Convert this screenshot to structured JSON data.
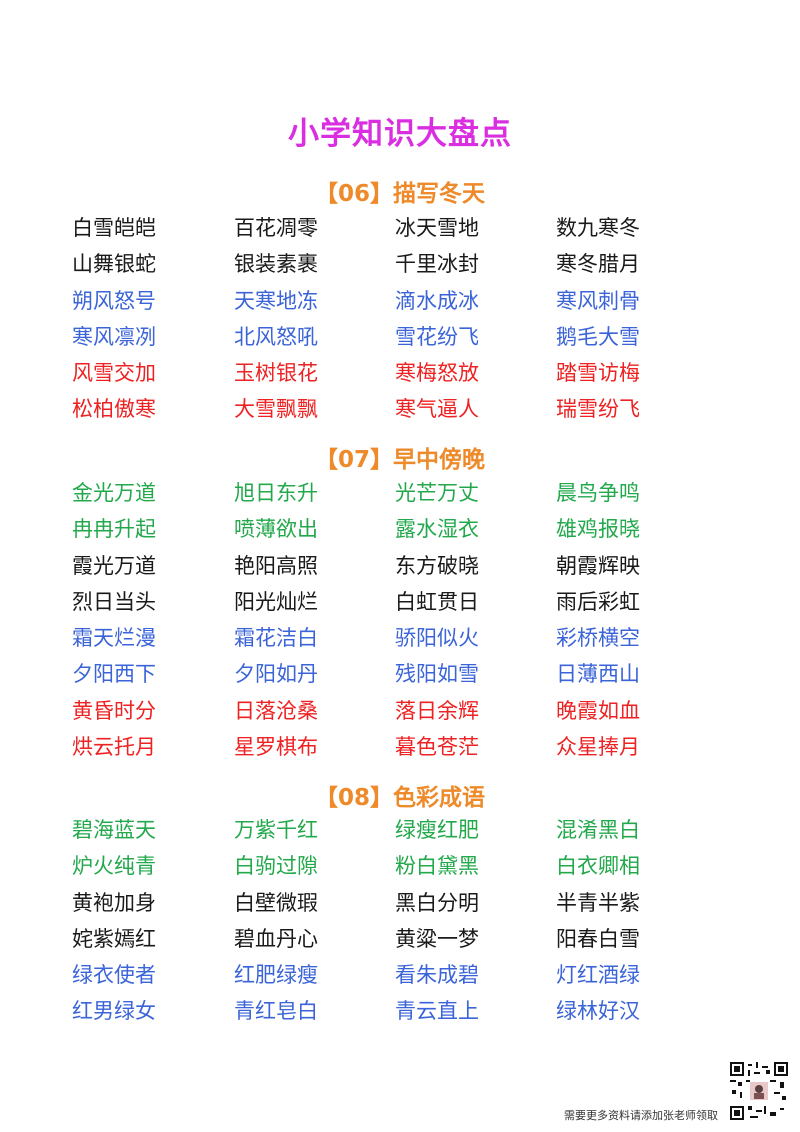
{
  "title": "小学知识大盘点",
  "colors": {
    "title": "#d92fe0",
    "section": "#ee8a2a",
    "black": "#1a1a1a",
    "blue": "#3b64d8",
    "red": "#ee2222",
    "green": "#23a84c"
  },
  "sections": [
    {
      "title": "【06】描写冬天",
      "rows": [
        {
          "color": "black",
          "items": [
            "白雪皑皑",
            "百花凋零",
            "冰天雪地",
            "数九寒冬"
          ]
        },
        {
          "color": "black",
          "items": [
            "山舞银蛇",
            "银装素裹",
            "千里冰封",
            "寒冬腊月"
          ]
        },
        {
          "color": "blue",
          "items": [
            "朔风怒号",
            "天寒地冻",
            "滴水成冰",
            "寒风刺骨"
          ]
        },
        {
          "color": "blue",
          "items": [
            "寒风凛冽",
            "北风怒吼",
            "雪花纷飞",
            "鹅毛大雪"
          ]
        },
        {
          "color": "red",
          "items": [
            "风雪交加",
            "玉树银花",
            "寒梅怒放",
            "踏雪访梅"
          ]
        },
        {
          "color": "red",
          "items": [
            "松柏傲寒",
            "大雪飘飘",
            "寒气逼人",
            "瑞雪纷飞"
          ]
        }
      ]
    },
    {
      "title": "【07】早中傍晚",
      "rows": [
        {
          "color": "green",
          "items": [
            "金光万道",
            "旭日东升",
            "光芒万丈",
            "晨鸟争鸣"
          ]
        },
        {
          "color": "green",
          "items": [
            "冉冉升起",
            "喷薄欲出",
            "露水湿衣",
            "雄鸡报晓"
          ]
        },
        {
          "color": "black",
          "items": [
            "霞光万道",
            "艳阳高照",
            "东方破晓",
            "朝霞辉映"
          ]
        },
        {
          "color": "black",
          "items": [
            "烈日当头",
            "阳光灿烂",
            "白虹贯日",
            "雨后彩虹"
          ]
        },
        {
          "color": "blue",
          "items": [
            "霜天烂漫",
            "霜花洁白",
            "骄阳似火",
            "彩桥横空"
          ]
        },
        {
          "color": "blue",
          "items": [
            "夕阳西下",
            "夕阳如丹",
            "残阳如雪",
            "日薄西山"
          ]
        },
        {
          "color": "red",
          "items": [
            "黄昏时分",
            "日落沧桑",
            "落日余辉",
            "晚霞如血"
          ]
        },
        {
          "color": "red",
          "items": [
            "烘云托月",
            "星罗棋布",
            "暮色苍茫",
            "众星捧月"
          ]
        }
      ]
    },
    {
      "title": "【08】色彩成语",
      "rows": [
        {
          "color": "green",
          "items": [
            "碧海蓝天",
            "万紫千红",
            "绿瘦红肥",
            "混淆黑白"
          ]
        },
        {
          "color": "green",
          "items": [
            "炉火纯青",
            "白驹过隙",
            "粉白黛黑",
            "白衣卿相"
          ]
        },
        {
          "color": "black",
          "items": [
            "黄袍加身",
            "白壁微瑕",
            "黑白分明",
            "半青半紫"
          ]
        },
        {
          "color": "black",
          "items": [
            "姹紫嫣红",
            "碧血丹心",
            "黄粱一梦",
            "阳春白雪"
          ]
        },
        {
          "color": "blue",
          "items": [
            "绿衣使者",
            "红肥绿瘦",
            "看朱成碧",
            "灯红酒绿"
          ]
        },
        {
          "color": "blue",
          "items": [
            "红男绿女",
            "青红皂白",
            "青云直上",
            "绿林好汉"
          ]
        }
      ]
    }
  ],
  "footer": "需要更多资料请添加张老师领取",
  "qr_icon": "qr-code-icon"
}
